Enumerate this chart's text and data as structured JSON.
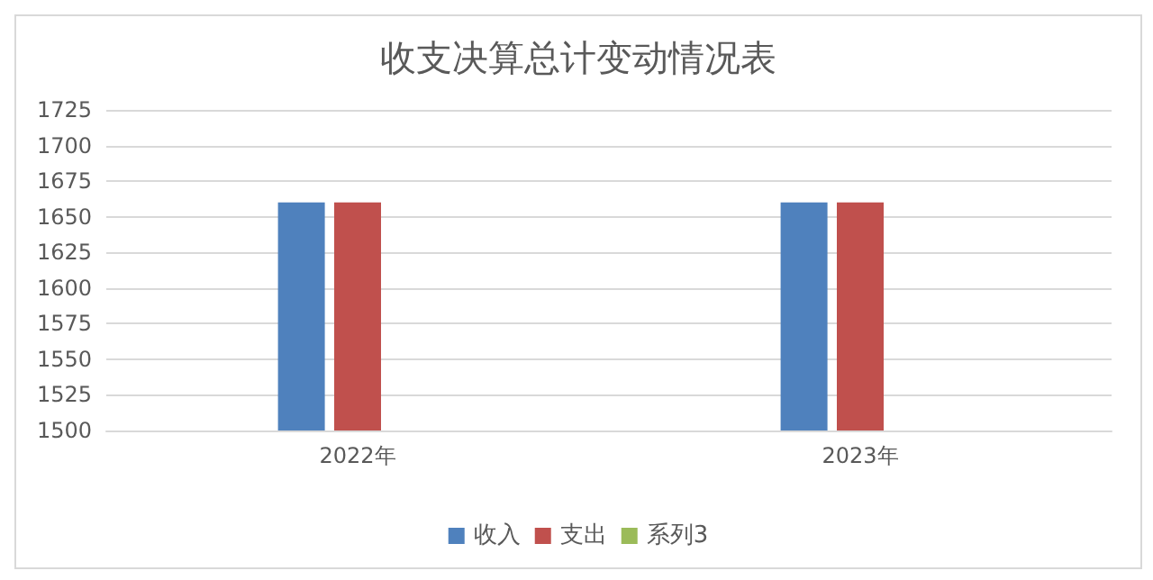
{
  "chart_data": {
    "type": "bar",
    "title": "收支决算总计变动情况表",
    "categories": [
      "2022年",
      "2023年"
    ],
    "series": [
      {
        "name": "收入",
        "color": "#4f81bd",
        "values": [
          1660,
          1660
        ]
      },
      {
        "name": "支出",
        "color": "#c0504d",
        "values": [
          1660,
          1660
        ]
      },
      {
        "name": "系列3",
        "color": "#9bbb59",
        "values": [
          null,
          null
        ]
      }
    ],
    "ylim": [
      1500,
      1725
    ],
    "yticks": [
      1500,
      1525,
      1550,
      1575,
      1600,
      1625,
      1650,
      1675,
      1700,
      1725
    ],
    "grid": "y",
    "legend": "bottom"
  }
}
